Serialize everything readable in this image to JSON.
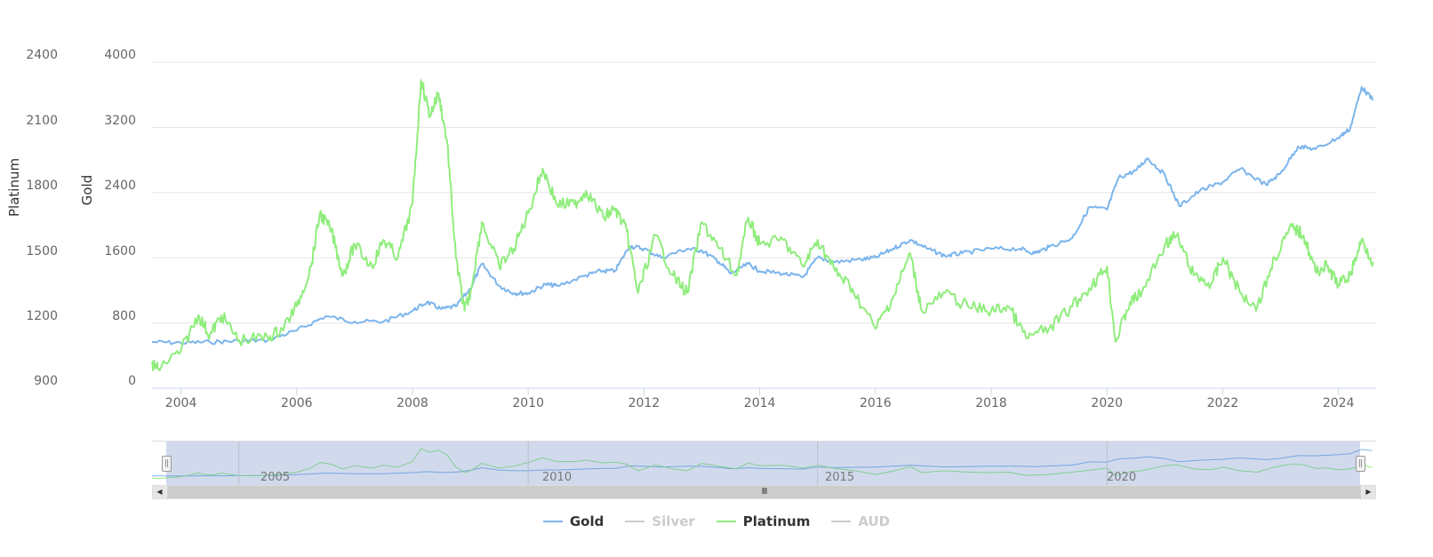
{
  "chart_data": {
    "type": "line",
    "title": "",
    "xlabel": "",
    "x_ticks": [
      "2004",
      "2006",
      "2008",
      "2010",
      "2012",
      "2014",
      "2016",
      "2018",
      "2020",
      "2022",
      "2024"
    ],
    "y_axes": [
      {
        "id": "gold",
        "title": "Gold",
        "ticks": [
          "0",
          "800",
          "1600",
          "2400",
          "3200",
          "4000"
        ],
        "range": [
          0,
          4000
        ]
      },
      {
        "id": "platinum",
        "title": "Platinum",
        "ticks": [
          "900",
          "1200",
          "1500",
          "1800",
          "2100",
          "2400"
        ],
        "range": [
          900,
          2400
        ]
      }
    ],
    "xlim": [
      2003.5,
      2024.65
    ],
    "grid": true,
    "legend_position": "bottom",
    "series": [
      {
        "name": "Gold",
        "axis": "gold",
        "color": "#7cb5ec",
        "visible": true,
        "x": [
          2003.5,
          2004,
          2004.5,
          2005,
          2005.5,
          2006,
          2006.5,
          2007,
          2007.5,
          2008,
          2008.25,
          2008.5,
          2008.75,
          2009,
          2009.2,
          2009.5,
          2009.75,
          2010,
          2010.3,
          2010.5,
          2011,
          2011.25,
          2011.5,
          2011.75,
          2012,
          2012.3,
          2012.75,
          2013,
          2013.3,
          2013.5,
          2013.8,
          2014,
          2014.4,
          2014.75,
          2015,
          2015.3,
          2015.75,
          2016,
          2016.3,
          2016.6,
          2016.9,
          2017.2,
          2017.5,
          2018,
          2018.5,
          2018.75,
          2019,
          2019.4,
          2019.7,
          2020,
          2020.2,
          2020.5,
          2020.7,
          2021,
          2021.25,
          2021.6,
          2022,
          2022.3,
          2022.75,
          2023,
          2023.3,
          2023.6,
          2024,
          2024.2,
          2024.4,
          2024.6
        ],
        "values": [
          567,
          556,
          567,
          578,
          589,
          708,
          883,
          817,
          817,
          948,
          1057,
          970,
          1003,
          1221,
          1526,
          1254,
          1166,
          1166,
          1275,
          1254,
          1384,
          1439,
          1439,
          1744,
          1711,
          1602,
          1711,
          1689,
          1548,
          1406,
          1526,
          1439,
          1406,
          1362,
          1602,
          1548,
          1580,
          1602,
          1711,
          1820,
          1711,
          1624,
          1656,
          1711,
          1711,
          1656,
          1733,
          1842,
          2223,
          2191,
          2583,
          2670,
          2823,
          2616,
          2234,
          2420,
          2529,
          2692,
          2496,
          2638,
          2965,
          2932,
          3074,
          3183,
          3695,
          3532
        ]
      },
      {
        "name": "Silver",
        "axis": "gold",
        "color": "#cccccc",
        "visible": false,
        "x": [],
        "values": []
      },
      {
        "name": "Platinum",
        "axis": "platinum",
        "color": "#90ed7d",
        "visible": true,
        "x": [
          2003.5,
          2003.6,
          2004,
          2004.3,
          2004.5,
          2004.7,
          2005,
          2005.5,
          2005.75,
          2006,
          2006.25,
          2006.4,
          2006.6,
          2006.8,
          2007,
          2007.3,
          2007.5,
          2007.75,
          2008,
          2008.15,
          2008.3,
          2008.45,
          2008.6,
          2008.75,
          2008.9,
          2009,
          2009.2,
          2009.5,
          2009.75,
          2010,
          2010.25,
          2010.5,
          2010.8,
          2011,
          2011.3,
          2011.5,
          2011.7,
          2011.9,
          2012.2,
          2012.5,
          2012.75,
          2013,
          2013.3,
          2013.6,
          2013.8,
          2014,
          2014.4,
          2014.75,
          2015,
          2015.3,
          2015.6,
          2016,
          2016.3,
          2016.6,
          2016.8,
          2017.2,
          2017.6,
          2018,
          2018.3,
          2018.6,
          2019,
          2019.4,
          2019.75,
          2020,
          2020.15,
          2020.4,
          2020.6,
          2021,
          2021.2,
          2021.5,
          2021.8,
          2022,
          2022.3,
          2022.6,
          2022.9,
          2023.2,
          2023.4,
          2023.6,
          2023.8,
          2024,
          2024.2,
          2024.4,
          2024.6
        ],
        "values": [
          1011,
          990,
          1072,
          1236,
          1142,
          1236,
          1121,
          1133,
          1174,
          1276,
          1460,
          1705,
          1624,
          1419,
          1562,
          1460,
          1583,
          1501,
          1746,
          2318,
          2155,
          2257,
          2032,
          1501,
          1256,
          1338,
          1664,
          1460,
          1542,
          1705,
          1910,
          1746,
          1746,
          1808,
          1685,
          1726,
          1624,
          1338,
          1603,
          1419,
          1338,
          1664,
          1542,
          1419,
          1685,
          1562,
          1583,
          1460,
          1583,
          1440,
          1358,
          1174,
          1317,
          1521,
          1256,
          1338,
          1276,
          1256,
          1276,
          1133,
          1174,
          1276,
          1378,
          1460,
          1113,
          1297,
          1338,
          1562,
          1603,
          1419,
          1378,
          1501,
          1338,
          1276,
          1501,
          1644,
          1603,
          1440,
          1460,
          1378,
          1419,
          1583,
          1481
        ]
      },
      {
        "name": "AUD",
        "axis": "gold",
        "color": "#cccccc",
        "visible": false,
        "x": [],
        "values": []
      }
    ]
  },
  "navigator": {
    "ticks": [
      "2005",
      "2010",
      "2015",
      "2020"
    ]
  },
  "legend": {
    "items": [
      {
        "label": "Gold",
        "color": "#7cb5ec",
        "visible": true
      },
      {
        "label": "Silver",
        "color": "#cccccc",
        "visible": false
      },
      {
        "label": "Platinum",
        "color": "#90ed7d",
        "visible": true
      },
      {
        "label": "AUD",
        "color": "#cccccc",
        "visible": false
      }
    ]
  }
}
